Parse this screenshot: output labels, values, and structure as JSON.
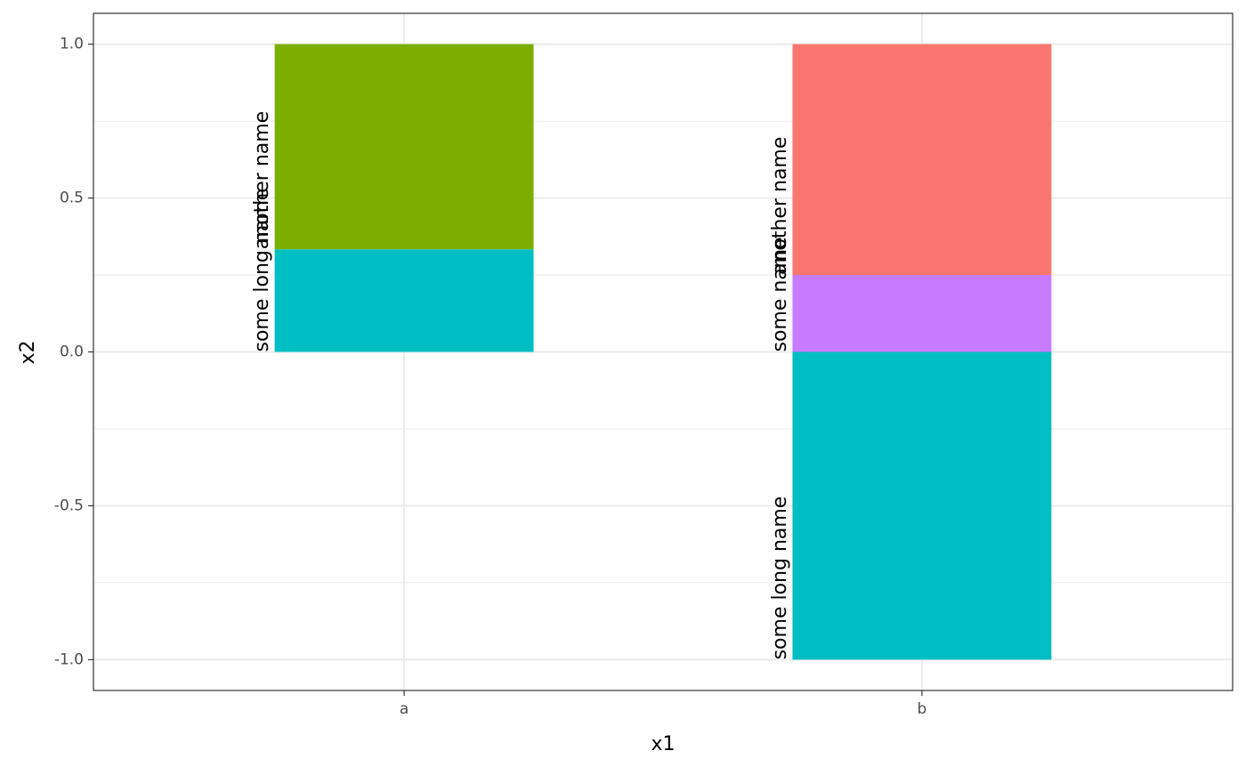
{
  "chart_data": {
    "type": "bar",
    "stacked": true,
    "xlabel": "x1",
    "ylabel": "x2",
    "categories": [
      "a",
      "b"
    ],
    "ylim": [
      -1.1,
      1.1
    ],
    "yticks": [
      -1.0,
      -0.5,
      0.0,
      0.5,
      1.0
    ],
    "ytick_labels": [
      "-1.0",
      "-0.5",
      "0.0",
      "0.5",
      "1.0"
    ],
    "grid": true,
    "legend": "none",
    "series": [
      {
        "name": "some long name",
        "color": "#00BFC4",
        "values": [
          0.3333,
          -1.0
        ]
      },
      {
        "name": "some name",
        "color": "#C77CFF",
        "values": [
          0,
          0.25
        ]
      },
      {
        "name": "another name",
        "color": "#F8766D",
        "values": [
          0,
          0.75
        ]
      },
      {
        "name": "another name",
        "color": "#7CAE00",
        "values": [
          0.6667,
          0
        ]
      }
    ],
    "segments": [
      {
        "category": "a",
        "label": "some long name",
        "color": "#00BFC4",
        "y0": 0.0,
        "y1": 0.3333
      },
      {
        "category": "a",
        "label": "another name",
        "color": "#7CAE00",
        "y0": 0.3333,
        "y1": 1.0
      },
      {
        "category": "b",
        "label": "some long name",
        "color": "#00BFC4",
        "y0": -1.0,
        "y1": 0.0
      },
      {
        "category": "b",
        "label": "some name",
        "color": "#C77CFF",
        "y0": 0.0,
        "y1": 0.25
      },
      {
        "category": "b",
        "label": "another name",
        "color": "#F8766D",
        "y0": 0.25,
        "y1": 1.0
      }
    ],
    "bar_labels": [
      {
        "category": "a",
        "text": "some long name",
        "y": 0.0
      },
      {
        "category": "a",
        "text": "another name",
        "y": 0.3333
      },
      {
        "category": "b",
        "text": "some long name",
        "y": -1.0
      },
      {
        "category": "b",
        "text": "some name",
        "y": 0.0
      },
      {
        "category": "b",
        "text": "another name",
        "y": 0.25
      }
    ]
  }
}
